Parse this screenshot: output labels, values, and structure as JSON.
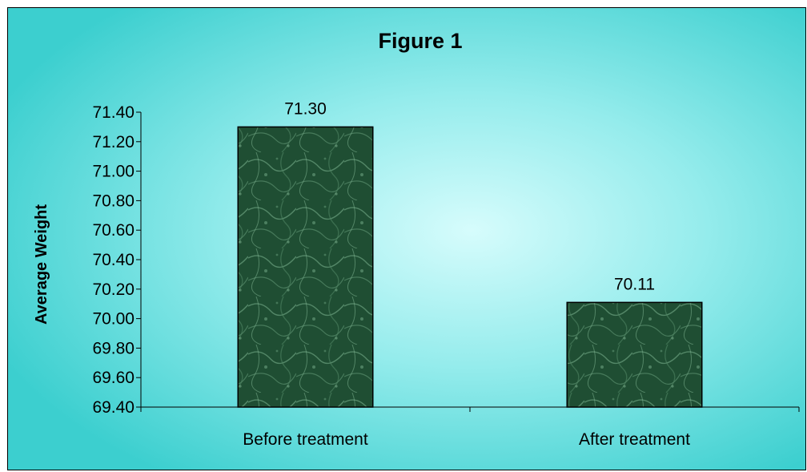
{
  "chart_data": {
    "type": "bar",
    "title": "Figure 1",
    "xlabel": "",
    "ylabel": "Average Weight",
    "categories": [
      "Before treatment",
      "After treatment"
    ],
    "values": [
      71.3,
      70.11
    ],
    "data_labels": [
      "71.30",
      "70.11"
    ],
    "ylim": [
      69.4,
      71.4
    ],
    "y_ticks": [
      "69.40",
      "69.60",
      "69.80",
      "70.00",
      "70.20",
      "70.40",
      "70.60",
      "70.80",
      "71.00",
      "71.20",
      "71.40"
    ],
    "grid": false,
    "legend": "none",
    "colors": {
      "background_edge": "#3ccfcf",
      "background_center": "#d6fcfc",
      "bar_fill": "#1f4e33",
      "bar_texture": "#6aa07e",
      "bar_stroke": "#000000"
    }
  }
}
